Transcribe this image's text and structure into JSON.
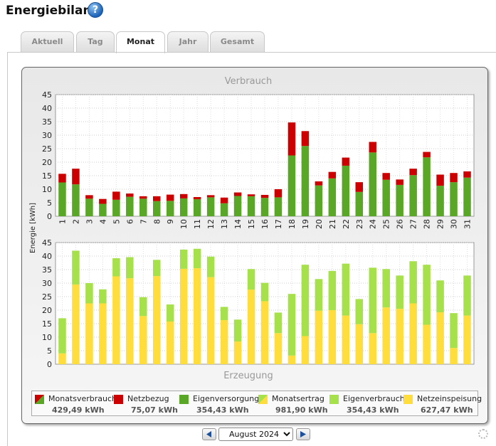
{
  "header": {
    "title": "Energiebilanz",
    "help_icon": "question-circle-icon"
  },
  "tabs": [
    {
      "label": "Aktuell",
      "active": false
    },
    {
      "label": "Tag",
      "active": false
    },
    {
      "label": "Monat",
      "active": true
    },
    {
      "label": "Jahr",
      "active": false
    },
    {
      "label": "Gesamt",
      "active": false
    }
  ],
  "colors": {
    "eigen_dark": "#5aa627",
    "netzbezug": "#cc0000",
    "eigen_light": "#a6e04a",
    "einspeisung": "#ffdd3c"
  },
  "chart_data": [
    {
      "type": "bar",
      "title": "Verbrauch",
      "ylabel": "Energie [kWh]",
      "ylim": [
        0,
        45
      ],
      "yticks": [
        0,
        5,
        10,
        15,
        20,
        25,
        30,
        35,
        40,
        45
      ],
      "categories": [
        "1",
        "2",
        "3",
        "4",
        "5",
        "6",
        "7",
        "8",
        "9",
        "10",
        "11",
        "12",
        "13",
        "14",
        "15",
        "16",
        "17",
        "18",
        "19",
        "20",
        "21",
        "22",
        "23",
        "24",
        "25",
        "26",
        "27",
        "28",
        "29",
        "30",
        "31"
      ],
      "stacked": true,
      "series": [
        {
          "name": "Eigenversorgung",
          "color": "#5aa627",
          "values": [
            12.5,
            11.8,
            6.5,
            4.6,
            6.1,
            7.2,
            6.5,
            5.6,
            5.7,
            6.6,
            6.3,
            7.0,
            4.8,
            7.5,
            7.4,
            6.8,
            7.0,
            22.5,
            26.0,
            11.4,
            14.0,
            18.7,
            9.0,
            23.6,
            13.5,
            11.6,
            15.2,
            21.8,
            11.3,
            12.6,
            14.3
          ]
        },
        {
          "name": "Netzbezug",
          "color": "#cc0000",
          "values": [
            3.2,
            5.8,
            1.3,
            1.8,
            3.0,
            1.2,
            0.9,
            1.8,
            2.3,
            1.6,
            0.8,
            0.8,
            2.1,
            1.3,
            0.7,
            1.1,
            3.0,
            12.2,
            5.5,
            1.5,
            2.4,
            3.0,
            3.6,
            3.9,
            2.5,
            2.0,
            2.4,
            2.0,
            4.1,
            3.4,
            2.3
          ]
        }
      ]
    },
    {
      "type": "bar",
      "title": "Erzeugung",
      "ylim": [
        0,
        45
      ],
      "yticks": [
        0,
        5,
        10,
        15,
        20,
        25,
        30,
        35,
        40,
        45
      ],
      "categories": [
        "1",
        "2",
        "3",
        "4",
        "5",
        "6",
        "7",
        "8",
        "9",
        "10",
        "11",
        "12",
        "13",
        "14",
        "15",
        "16",
        "17",
        "18",
        "19",
        "20",
        "21",
        "22",
        "23",
        "24",
        "25",
        "26",
        "27",
        "28",
        "29",
        "30",
        "31"
      ],
      "stacked": true,
      "series": [
        {
          "name": "Netzeinspeisung",
          "color": "#ffdd3c",
          "values": [
            4.0,
            29.5,
            22.5,
            22.5,
            32.5,
            31.8,
            17.8,
            32.6,
            15.8,
            35.3,
            35.5,
            32.2,
            16.3,
            8.4,
            27.6,
            23.3,
            11.5,
            3.2,
            10.4,
            19.8,
            20.0,
            18.0,
            14.8,
            11.5,
            21.0,
            20.5,
            22.5,
            14.6,
            19.2,
            6.0,
            18.0
          ]
        },
        {
          "name": "Eigenverbrauch",
          "color": "#a6e04a",
          "values": [
            13.0,
            12.5,
            7.5,
            5.2,
            6.7,
            7.8,
            7.0,
            6.0,
            6.3,
            7.1,
            7.2,
            7.6,
            4.9,
            8.1,
            7.6,
            6.8,
            7.6,
            22.8,
            26.4,
            11.7,
            14.5,
            19.2,
            9.3,
            24.2,
            14.2,
            12.3,
            15.6,
            22.2,
            11.8,
            12.9,
            14.8
          ]
        }
      ]
    }
  ],
  "legend": [
    {
      "label": "Monatsverbrauch",
      "value": "429,49 kWh",
      "swatch": "diag-red-green"
    },
    {
      "label": "Netzbezug",
      "value": "75,07 kWh",
      "swatch": "#cc0000"
    },
    {
      "label": "Eigenversorgung",
      "value": "354,43 kWh",
      "swatch": "#5aa627"
    },
    {
      "label": "Monatsertrag",
      "value": "981,90 kWh",
      "swatch": "diag-green-yellow"
    },
    {
      "label": "Eigenverbrauch",
      "value": "354,43 kWh",
      "swatch": "#a6e04a"
    },
    {
      "label": "Netzeinspeisung",
      "value": "627,47 kWh",
      "swatch": "#ffdd3c"
    }
  ],
  "footer": {
    "prev_icon": "arrow-left-icon",
    "next_icon": "arrow-right-icon",
    "selected_month": "August 2024",
    "settings_icon": "gear-icon"
  }
}
